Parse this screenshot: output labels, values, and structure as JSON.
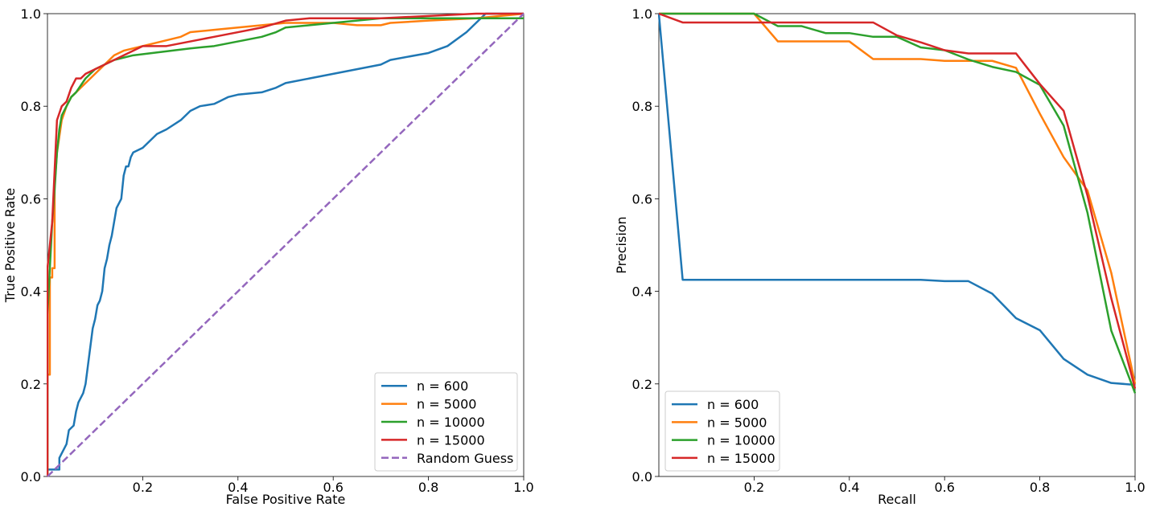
{
  "colors": {
    "n600": "#1f77b4",
    "n5000": "#ff7f0e",
    "n10000": "#2ca02c",
    "n15000": "#d62728",
    "random": "#9467bd"
  },
  "chart_data": [
    {
      "type": "line",
      "title": "",
      "xlabel": "False Positive Rate",
      "ylabel": "True Positive Rate",
      "xlim": [
        0,
        1
      ],
      "ylim": [
        0,
        1
      ],
      "xticks": [
        "0.2",
        "0.4",
        "0.6",
        "0.8",
        "1.0"
      ],
      "yticks": [
        "0.0",
        "0.2",
        "0.4",
        "0.6",
        "0.8",
        "1.0"
      ],
      "legend_position": "lower right",
      "series": [
        {
          "name": "n = 600",
          "color": "#1f77b4",
          "x": [
            0,
            0,
            0.025,
            0.025,
            0.04,
            0.045,
            0.055,
            0.06,
            0.065,
            0.07,
            0.075,
            0.08,
            0.085,
            0.09,
            0.095,
            0.1,
            0.105,
            0.11,
            0.115,
            0.12,
            0.125,
            0.13,
            0.135,
            0.14,
            0.145,
            0.15,
            0.155,
            0.16,
            0.165,
            0.17,
            0.175,
            0.18,
            0.19,
            0.2,
            0.21,
            0.22,
            0.23,
            0.25,
            0.28,
            0.3,
            0.32,
            0.35,
            0.36,
            0.38,
            0.4,
            0.45,
            0.48,
            0.5,
            0.55,
            0.6,
            0.65,
            0.7,
            0.72,
            0.8,
            0.84,
            0.88,
            0.9,
            0.92,
            1.0
          ],
          "y": [
            0,
            0.015,
            0.015,
            0.04,
            0.07,
            0.1,
            0.11,
            0.14,
            0.16,
            0.17,
            0.18,
            0.2,
            0.24,
            0.28,
            0.32,
            0.34,
            0.37,
            0.38,
            0.4,
            0.45,
            0.47,
            0.5,
            0.52,
            0.55,
            0.58,
            0.59,
            0.6,
            0.65,
            0.67,
            0.67,
            0.69,
            0.7,
            0.705,
            0.71,
            0.72,
            0.73,
            0.74,
            0.75,
            0.77,
            0.79,
            0.8,
            0.805,
            0.81,
            0.82,
            0.825,
            0.83,
            0.84,
            0.85,
            0.86,
            0.87,
            0.88,
            0.89,
            0.9,
            0.915,
            0.93,
            0.96,
            0.98,
            1.0,
            1.0
          ]
        },
        {
          "name": "n = 5000",
          "color": "#ff7f0e",
          "x": [
            0,
            0,
            0.005,
            0.005,
            0.01,
            0.01,
            0.015,
            0.015,
            0.02,
            0.03,
            0.04,
            0.05,
            0.06,
            0.07,
            0.08,
            0.1,
            0.12,
            0.14,
            0.16,
            0.2,
            0.24,
            0.28,
            0.3,
            0.35,
            0.4,
            0.45,
            0.5,
            0.6,
            0.65,
            0.7,
            0.72,
            0.8,
            0.9,
            0.95,
            1.0
          ],
          "y": [
            0,
            0.22,
            0.22,
            0.43,
            0.43,
            0.45,
            0.45,
            0.63,
            0.7,
            0.77,
            0.8,
            0.82,
            0.83,
            0.84,
            0.85,
            0.87,
            0.89,
            0.91,
            0.92,
            0.93,
            0.94,
            0.95,
            0.96,
            0.965,
            0.97,
            0.975,
            0.98,
            0.98,
            0.975,
            0.975,
            0.98,
            0.985,
            0.99,
            0.995,
            1.0
          ]
        },
        {
          "name": "n = 10000",
          "color": "#2ca02c",
          "x": [
            0,
            0,
            0.005,
            0.01,
            0.015,
            0.02,
            0.025,
            0.03,
            0.04,
            0.05,
            0.06,
            0.08,
            0.1,
            0.12,
            0.14,
            0.18,
            0.22,
            0.26,
            0.3,
            0.35,
            0.4,
            0.45,
            0.48,
            0.5,
            0.55,
            0.6,
            0.65,
            0.7,
            0.8,
            0.9,
            1.0
          ],
          "y": [
            0,
            0.35,
            0.45,
            0.55,
            0.62,
            0.7,
            0.75,
            0.78,
            0.8,
            0.82,
            0.83,
            0.86,
            0.88,
            0.89,
            0.9,
            0.91,
            0.915,
            0.92,
            0.925,
            0.93,
            0.94,
            0.95,
            0.96,
            0.97,
            0.975,
            0.98,
            0.985,
            0.99,
            0.99,
            0.99,
            0.99
          ]
        },
        {
          "name": "n = 15000",
          "color": "#d62728",
          "x": [
            0,
            0,
            0.005,
            0.01,
            0.015,
            0.02,
            0.03,
            0.04,
            0.05,
            0.06,
            0.07,
            0.08,
            0.1,
            0.12,
            0.14,
            0.16,
            0.2,
            0.25,
            0.3,
            0.35,
            0.4,
            0.45,
            0.5,
            0.55,
            0.6,
            0.7,
            0.8,
            0.9,
            1.0
          ],
          "y": [
            0,
            0.45,
            0.5,
            0.55,
            0.66,
            0.77,
            0.8,
            0.81,
            0.84,
            0.86,
            0.86,
            0.87,
            0.88,
            0.89,
            0.9,
            0.91,
            0.93,
            0.93,
            0.94,
            0.95,
            0.96,
            0.97,
            0.985,
            0.99,
            0.99,
            0.99,
            0.995,
            1.0,
            1.0
          ]
        },
        {
          "name": "Random Guess",
          "color": "#9467bd",
          "dashed": true,
          "x": [
            0,
            1
          ],
          "y": [
            0,
            1
          ]
        }
      ]
    },
    {
      "type": "line",
      "title": "",
      "xlabel": "Recall",
      "ylabel": "Precision",
      "xlim": [
        0,
        1
      ],
      "ylim": [
        0,
        1
      ],
      "xticks": [
        "0.2",
        "0.4",
        "0.6",
        "0.8",
        "1.0"
      ],
      "yticks": [
        "0.0",
        "0.2",
        "0.4",
        "0.6",
        "0.8",
        "1.0"
      ],
      "legend_position": "lower left",
      "series": [
        {
          "name": "n = 600",
          "color": "#1f77b4",
          "x": [
            0,
            0.05,
            0.1,
            0.2,
            0.3,
            0.4,
            0.5,
            0.55,
            0.6,
            0.65,
            0.7,
            0.75,
            0.8,
            0.85,
            0.9,
            0.95,
            1.0
          ],
          "y": [
            1.0,
            0.425,
            0.425,
            0.425,
            0.425,
            0.425,
            0.425,
            0.425,
            0.422,
            0.422,
            0.395,
            0.342,
            0.316,
            0.254,
            0.22,
            0.202,
            0.198
          ]
        },
        {
          "name": "n = 5000",
          "color": "#ff7f0e",
          "x": [
            0,
            0.05,
            0.1,
            0.15,
            0.2,
            0.25,
            0.3,
            0.35,
            0.4,
            0.45,
            0.5,
            0.55,
            0.6,
            0.65,
            0.7,
            0.75,
            0.8,
            0.85,
            0.9,
            0.95,
            1.0
          ],
          "y": [
            1.0,
            1.0,
            1.0,
            1.0,
            1.0,
            0.94,
            0.94,
            0.94,
            0.94,
            0.902,
            0.902,
            0.902,
            0.898,
            0.898,
            0.898,
            0.883,
            0.784,
            0.69,
            0.618,
            0.44,
            0.2
          ]
        },
        {
          "name": "n = 10000",
          "color": "#2ca02c",
          "x": [
            0,
            0.05,
            0.1,
            0.15,
            0.2,
            0.25,
            0.3,
            0.35,
            0.4,
            0.45,
            0.5,
            0.55,
            0.6,
            0.65,
            0.7,
            0.75,
            0.8,
            0.85,
            0.9,
            0.95,
            1.0
          ],
          "y": [
            1.0,
            1.0,
            1.0,
            1.0,
            1.0,
            0.973,
            0.973,
            0.958,
            0.958,
            0.95,
            0.95,
            0.927,
            0.921,
            0.901,
            0.885,
            0.874,
            0.846,
            0.758,
            0.57,
            0.315,
            0.18
          ]
        },
        {
          "name": "n = 15000",
          "color": "#d62728",
          "x": [
            0,
            0.05,
            0.1,
            0.15,
            0.2,
            0.25,
            0.3,
            0.35,
            0.4,
            0.45,
            0.5,
            0.55,
            0.6,
            0.65,
            0.7,
            0.75,
            0.8,
            0.85,
            0.9,
            0.95,
            1.0
          ],
          "y": [
            1.0,
            0.981,
            0.981,
            0.981,
            0.981,
            0.981,
            0.981,
            0.981,
            0.981,
            0.981,
            0.953,
            0.938,
            0.921,
            0.914,
            0.914,
            0.914,
            0.848,
            0.79,
            0.607,
            0.385,
            0.19
          ]
        }
      ]
    }
  ]
}
